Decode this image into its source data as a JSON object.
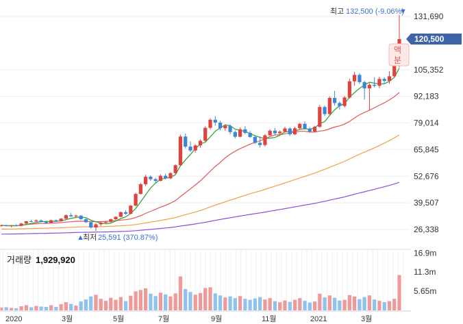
{
  "chart_data": {
    "type": "candlestick",
    "y_ticks": [
      "131,690",
      "105,352",
      "92,183",
      "79,014",
      "65,845",
      "52,676",
      "39,507",
      "26,338"
    ],
    "y_tick_values": [
      131690,
      105352,
      92183,
      79014,
      65845,
      52676,
      39507,
      26338
    ],
    "x_labels": [
      "2020",
      "3월",
      "5월",
      "7월",
      "9월",
      "11월",
      "2021",
      "3월"
    ],
    "high_label": {
      "prefix": "최고",
      "value": "132,500 (-9.06%)",
      "marker": "▼"
    },
    "low_label": {
      "prefix": "최저",
      "value": "25,591 (370.87%)",
      "marker": "▲"
    },
    "current_price": "120,500",
    "current_price_value": 120500,
    "badge": [
      "액",
      "분"
    ],
    "volume": {
      "title": "거래량",
      "value": "1,929,920",
      "ticks": [
        "16.9m",
        "11.3m",
        "5.65m"
      ],
      "tick_values": [
        16.9,
        11.3,
        5.65
      ]
    },
    "colors": {
      "up": "#e0433f",
      "down": "#3d86d6",
      "vol_up": "#ef9a9a",
      "vol_down": "#90c2ee",
      "ma5": "#35a63a",
      "ma20": "#e05656",
      "ma60": "#f0a040",
      "ma120": "#8a4fd6",
      "price_tag": "#3f63a8"
    },
    "candles": [
      [
        28200,
        28800,
        27600,
        28400
      ],
      [
        28400,
        28700,
        27800,
        28000
      ],
      [
        28000,
        28500,
        27400,
        28300
      ],
      [
        28300,
        28900,
        27900,
        28100
      ],
      [
        28100,
        29600,
        27900,
        29300
      ],
      [
        29300,
        30600,
        29000,
        30400
      ],
      [
        30400,
        31100,
        29900,
        30300
      ],
      [
        30300,
        31500,
        30100,
        30800
      ],
      [
        30800,
        31300,
        29900,
        30200
      ],
      [
        30200,
        30700,
        29300,
        29600
      ],
      [
        29600,
        31200,
        29400,
        30900
      ],
      [
        30900,
        31300,
        30000,
        30400
      ],
      [
        30400,
        31900,
        30200,
        31700
      ],
      [
        31700,
        33700,
        31500,
        33400
      ],
      [
        33400,
        34500,
        32600,
        32800
      ],
      [
        32800,
        33700,
        31900,
        33200
      ],
      [
        33200,
        33400,
        31100,
        31400
      ],
      [
        31400,
        31800,
        29600,
        29900
      ],
      [
        29900,
        30400,
        26800,
        27300
      ],
      [
        27300,
        29400,
        25591,
        28900
      ],
      [
        28900,
        30300,
        28100,
        29700
      ],
      [
        29700,
        30600,
        29000,
        30100
      ],
      [
        30100,
        31800,
        29800,
        31400
      ],
      [
        31400,
        32900,
        31000,
        32600
      ],
      [
        32600,
        35200,
        32300,
        34900
      ],
      [
        34900,
        35900,
        33600,
        34100
      ],
      [
        34100,
        38600,
        33900,
        38100
      ],
      [
        38100,
        44500,
        37800,
        43900
      ],
      [
        43900,
        49400,
        43600,
        48700
      ],
      [
        48700,
        53400,
        47900,
        52400
      ],
      [
        52400,
        53100,
        50400,
        51200
      ],
      [
        51200,
        51900,
        49600,
        50400
      ],
      [
        50400,
        53600,
        50100,
        52900
      ],
      [
        52900,
        53900,
        51100,
        51600
      ],
      [
        51600,
        54600,
        51200,
        54200
      ],
      [
        54200,
        58600,
        53800,
        58100
      ],
      [
        58100,
        73200,
        57600,
        72300
      ],
      [
        72300,
        73800,
        66400,
        67300
      ],
      [
        67300,
        69900,
        64600,
        65400
      ],
      [
        65400,
        68500,
        64400,
        67900
      ],
      [
        67900,
        70900,
        66800,
        70200
      ],
      [
        70200,
        77400,
        69800,
        76600
      ],
      [
        76600,
        81300,
        75800,
        80600
      ],
      [
        80600,
        82400,
        77600,
        79200
      ],
      [
        79200,
        80100,
        75400,
        76400
      ],
      [
        76400,
        78400,
        75100,
        77600
      ],
      [
        77600,
        78300,
        73300,
        74500
      ],
      [
        74500,
        75300,
        71400,
        72200
      ],
      [
        72200,
        76800,
        71900,
        75900
      ],
      [
        75900,
        77400,
        73400,
        74100
      ],
      [
        74100,
        75100,
        71600,
        72100
      ],
      [
        72100,
        72600,
        68600,
        69200
      ],
      [
        69200,
        72400,
        66800,
        68100
      ],
      [
        68100,
        73600,
        67300,
        72900
      ],
      [
        72900,
        75900,
        72600,
        75200
      ],
      [
        75200,
        76500,
        73100,
        73900
      ],
      [
        73900,
        75400,
        73100,
        74700
      ],
      [
        74700,
        77100,
        74300,
        76300
      ],
      [
        76300,
        76900,
        72600,
        73400
      ],
      [
        73400,
        77100,
        73100,
        76400
      ],
      [
        76400,
        79100,
        75600,
        78600
      ],
      [
        78600,
        79800,
        75600,
        76200
      ],
      [
        76200,
        76900,
        74100,
        74800
      ],
      [
        74800,
        77600,
        74400,
        77100
      ],
      [
        77100,
        87900,
        76600,
        86900
      ],
      [
        86900,
        87600,
        82400,
        83400
      ],
      [
        83400,
        92100,
        83100,
        91400
      ],
      [
        91400,
        94900,
        87600,
        88900
      ],
      [
        88900,
        89600,
        85600,
        87400
      ],
      [
        87400,
        92400,
        86600,
        91600
      ],
      [
        91600,
        100900,
        91100,
        99600
      ],
      [
        99600,
        104300,
        97400,
        102800
      ],
      [
        102800,
        103600,
        98300,
        99200
      ],
      [
        99200,
        99900,
        90600,
        96100
      ],
      [
        96100,
        98700,
        85400,
        97900
      ],
      [
        97900,
        101600,
        96600,
        97400
      ],
      [
        97400,
        101800,
        96200,
        100800
      ],
      [
        100800,
        101600,
        98600,
        99800
      ],
      [
        99800,
        104600,
        98400,
        102100
      ],
      [
        102100,
        108400,
        101600,
        107600
      ],
      [
        107600,
        132500,
        106500,
        120500
      ]
    ],
    "volumes": [
      [
        0.8,
        1
      ],
      [
        0.9,
        0
      ],
      [
        0.7,
        1
      ],
      [
        0.6,
        0
      ],
      [
        1.2,
        1
      ],
      [
        1.5,
        1
      ],
      [
        0.9,
        0
      ],
      [
        1.3,
        1
      ],
      [
        1.1,
        0
      ],
      [
        1.0,
        0
      ],
      [
        1.5,
        1
      ],
      [
        1.0,
        0
      ],
      [
        1.8,
        1
      ],
      [
        2.4,
        1
      ],
      [
        1.9,
        0
      ],
      [
        1.4,
        1
      ],
      [
        2.6,
        0
      ],
      [
        3.2,
        0
      ],
      [
        4.1,
        0
      ],
      [
        4.6,
        1
      ],
      [
        3.4,
        1
      ],
      [
        2.8,
        1
      ],
      [
        3.7,
        1
      ],
      [
        3.1,
        1
      ],
      [
        3.9,
        1
      ],
      [
        2.7,
        0
      ],
      [
        4.3,
        1
      ],
      [
        5.6,
        1
      ],
      [
        6.0,
        1
      ],
      [
        6.5,
        1
      ],
      [
        4.9,
        0
      ],
      [
        4.2,
        0
      ],
      [
        5.2,
        1
      ],
      [
        4.7,
        0
      ],
      [
        4.1,
        1
      ],
      [
        5.0,
        1
      ],
      [
        10.0,
        1
      ],
      [
        6.3,
        0
      ],
      [
        5.4,
        0
      ],
      [
        4.6,
        1
      ],
      [
        5.1,
        1
      ],
      [
        6.6,
        1
      ],
      [
        6.8,
        1
      ],
      [
        5.0,
        0
      ],
      [
        4.4,
        0
      ],
      [
        3.8,
        1
      ],
      [
        4.1,
        0
      ],
      [
        3.6,
        0
      ],
      [
        4.2,
        1
      ],
      [
        3.4,
        0
      ],
      [
        3.1,
        0
      ],
      [
        3.5,
        0
      ],
      [
        3.9,
        0
      ],
      [
        3.2,
        1
      ],
      [
        3.6,
        1
      ],
      [
        2.7,
        0
      ],
      [
        2.4,
        1
      ],
      [
        2.9,
        1
      ],
      [
        2.5,
        0
      ],
      [
        3.1,
        1
      ],
      [
        3.6,
        1
      ],
      [
        2.8,
        0
      ],
      [
        2.3,
        0
      ],
      [
        2.6,
        1
      ],
      [
        4.9,
        1
      ],
      [
        3.8,
        0
      ],
      [
        4.4,
        1
      ],
      [
        3.7,
        0
      ],
      [
        2.9,
        0
      ],
      [
        3.1,
        1
      ],
      [
        4.5,
        1
      ],
      [
        4.1,
        1
      ],
      [
        3.3,
        0
      ],
      [
        3.9,
        0
      ],
      [
        4.4,
        1
      ],
      [
        3.2,
        0
      ],
      [
        2.8,
        1
      ],
      [
        2.4,
        0
      ],
      [
        2.7,
        1
      ],
      [
        3.4,
        1
      ],
      [
        10.4,
        1
      ]
    ]
  }
}
